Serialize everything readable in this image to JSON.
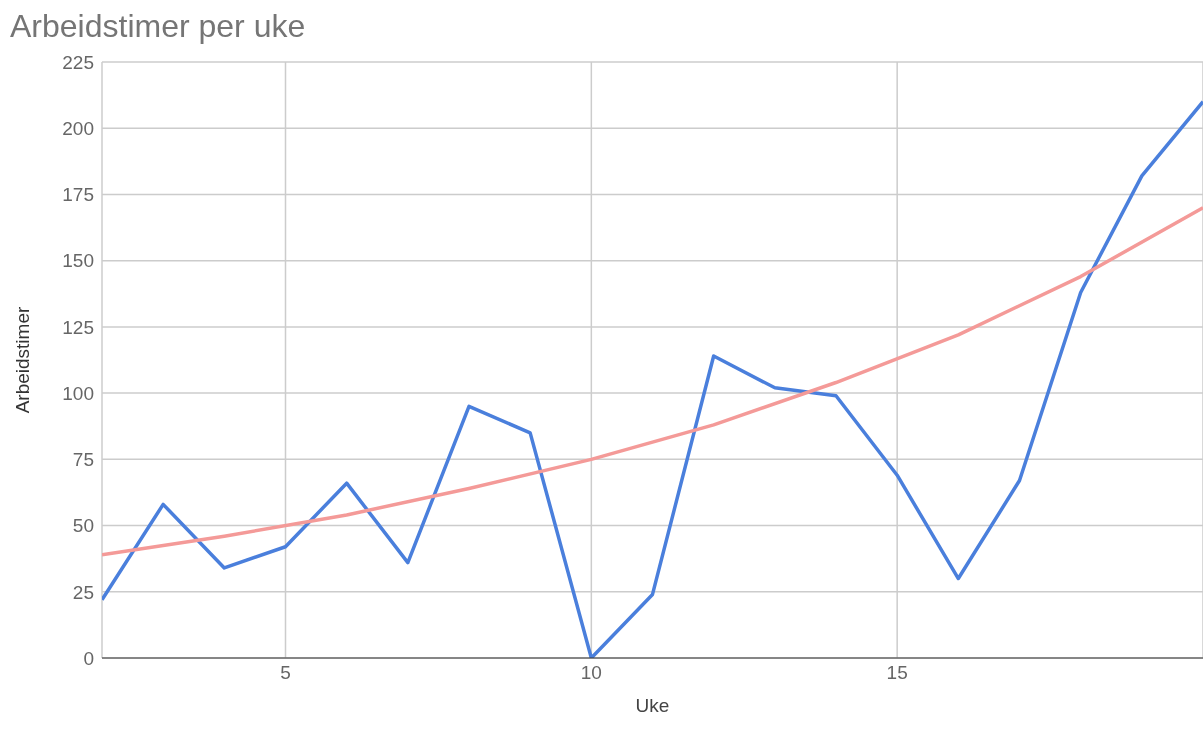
{
  "chart_data": {
    "type": "line",
    "title": "Arbeidstimer per uke",
    "xlabel": "Uke",
    "ylabel": "Arbeidstimer",
    "series": [
      {
        "color": "#4a7fdc",
        "x": [
          2,
          3,
          4,
          5,
          6,
          7,
          8,
          9,
          10,
          11,
          12,
          13,
          14,
          15,
          16,
          17,
          18,
          19,
          20
        ],
        "values": [
          22,
          58,
          34,
          42,
          66,
          36,
          95,
          85,
          0,
          24,
          114,
          102,
          99,
          69,
          30,
          67,
          138,
          182,
          210
        ]
      },
      {
        "type": "line",
        "color": "#f49a98",
        "x": [
          2,
          4,
          6,
          8,
          10,
          12,
          14,
          16,
          18,
          20
        ],
        "values": [
          39,
          46,
          54,
          64,
          75,
          88,
          104,
          122,
          144,
          170
        ]
      }
    ],
    "xlim": [
      2,
      20
    ],
    "xticks": [
      5,
      10,
      15
    ],
    "ylim": [
      0,
      225
    ],
    "yticks": [
      0,
      25,
      50,
      75,
      100,
      125,
      150,
      175,
      200,
      225
    ],
    "grid": true,
    "legend": false,
    "marker": "none",
    "line_style": "solid"
  }
}
